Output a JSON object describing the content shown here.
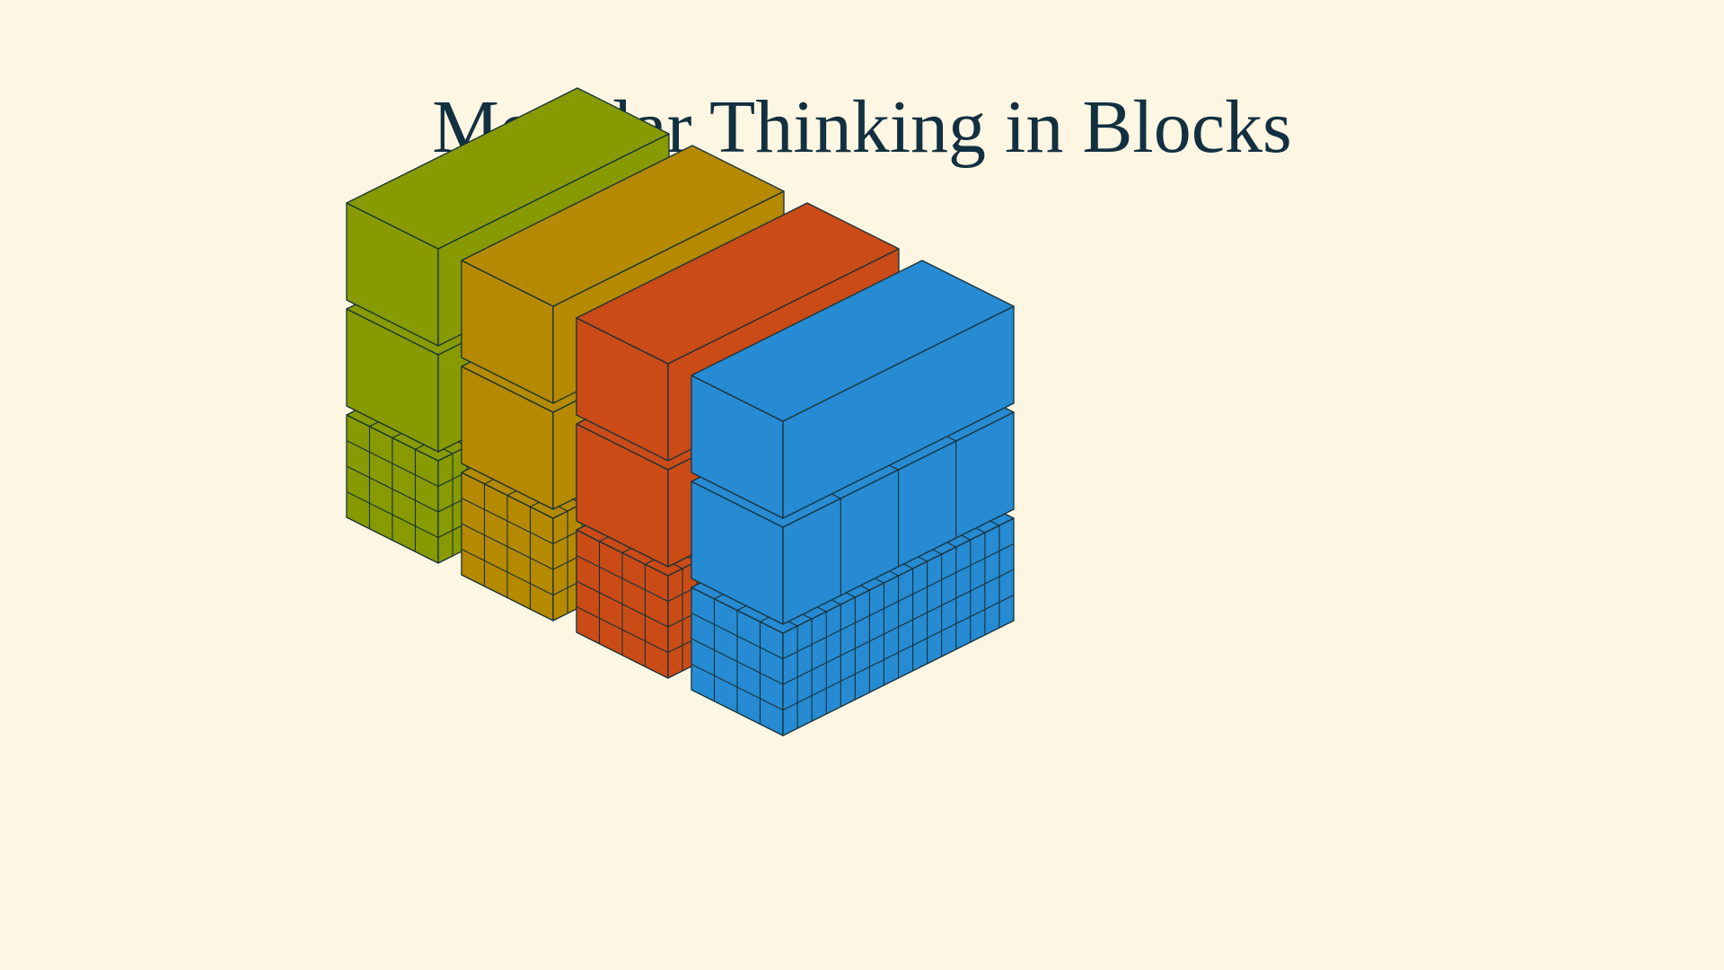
{
  "title": "Modular Thinking in Blocks",
  "palette": {
    "background": "#fdf6e3",
    "title_color": "#123040",
    "outline": "#17323a"
  },
  "stacks": [
    {
      "name": "green",
      "color": "#879a00",
      "layers": [
        {
          "kind": "cubes",
          "segments": 4
        },
        {
          "kind": "bar",
          "segments": 1
        },
        {
          "kind": "bar",
          "segments": 1
        }
      ]
    },
    {
      "name": "gold",
      "color": "#b58900",
      "layers": [
        {
          "kind": "cubes",
          "segments": 4
        },
        {
          "kind": "bar",
          "segments": 1
        },
        {
          "kind": "bar",
          "segments": 1
        }
      ]
    },
    {
      "name": "orange",
      "color": "#cb4b16",
      "layers": [
        {
          "kind": "cubes",
          "segments": 4
        },
        {
          "kind": "bar",
          "segments": 1
        },
        {
          "kind": "bar",
          "segments": 1
        }
      ]
    },
    {
      "name": "blue",
      "color": "#268bd2",
      "layers": [
        {
          "kind": "cubes",
          "segments": 4
        },
        {
          "kind": "bar",
          "segments": 4
        },
        {
          "kind": "bar",
          "segments": 1
        }
      ]
    }
  ]
}
